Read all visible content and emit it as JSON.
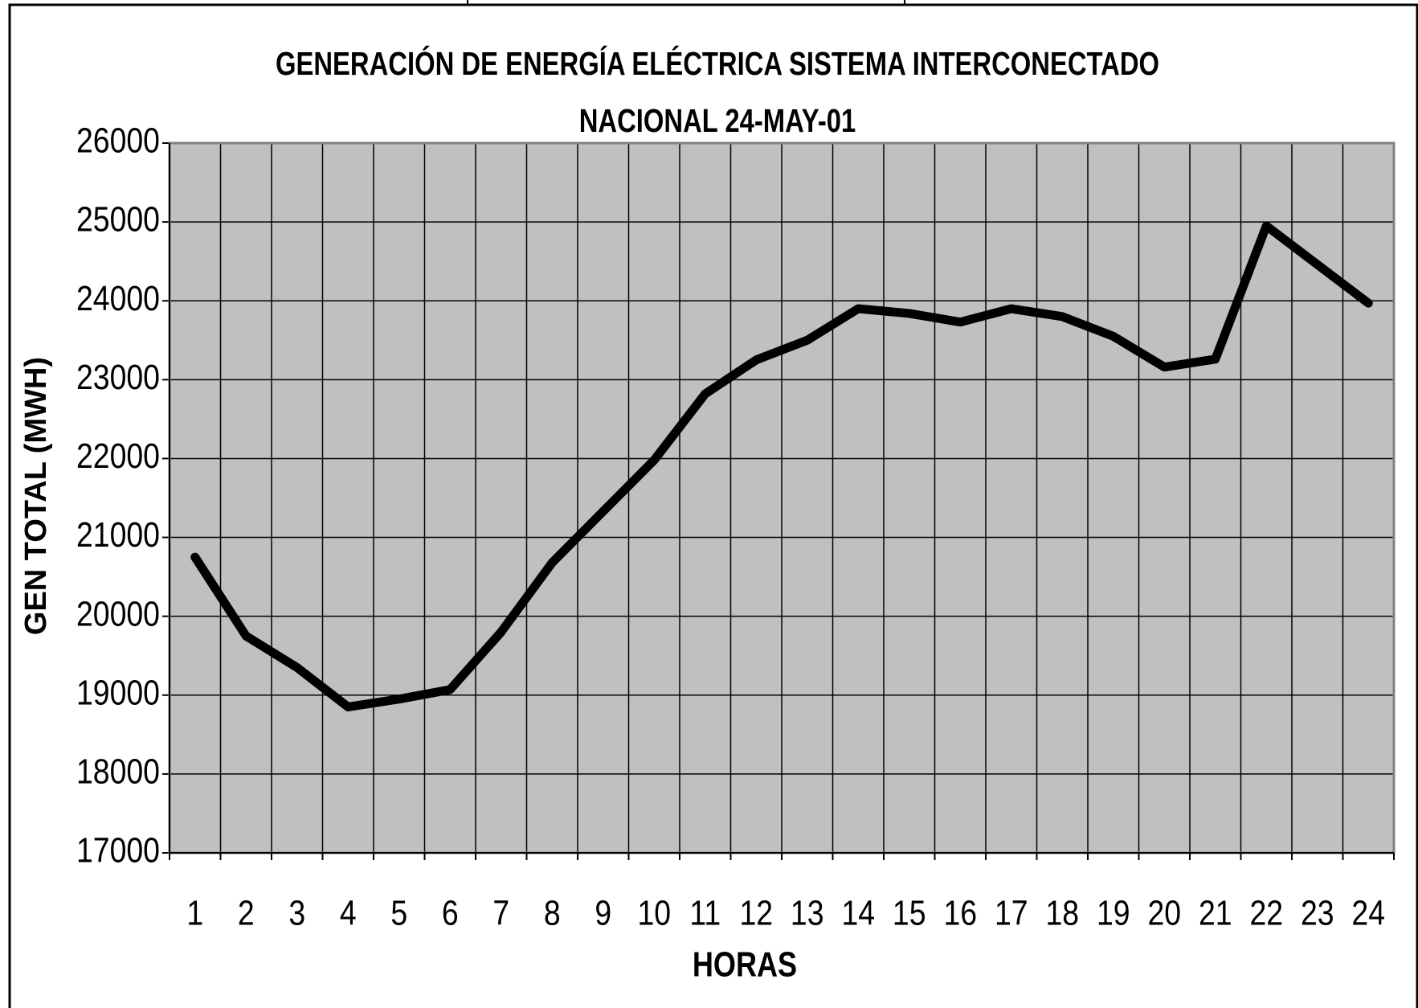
{
  "chart_data": {
    "type": "line",
    "title": "GENERACIÓN DE ENERGÍA ELÉCTRICA SISTEMA INTERCONECTADO NACIONAL 24-MAY-01",
    "x_label": "HORAS",
    "y_label": "GEN TOTAL (MWH)",
    "categories": [
      "1",
      "2",
      "3",
      "4",
      "5",
      "6",
      "7",
      "8",
      "9",
      "10",
      "11",
      "12",
      "13",
      "14",
      "15",
      "16",
      "17",
      "18",
      "19",
      "20",
      "21",
      "22",
      "23",
      "24"
    ],
    "series": [
      {
        "name": "GEN TOTAL",
        "color": "#000000",
        "values": [
          20750,
          19750,
          19350,
          18850,
          18950,
          19070,
          19800,
          20680,
          21330,
          21980,
          22820,
          23250,
          23500,
          23900,
          23840,
          23730,
          23900,
          23800,
          23550,
          23160,
          23260,
          24950,
          24460,
          23970
        ]
      }
    ],
    "ylim": [
      17000,
      26000
    ],
    "yticks": [
      17000,
      18000,
      19000,
      20000,
      21000,
      22000,
      23000,
      24000,
      25000,
      26000
    ],
    "grid": true,
    "plot_background": "#c0c0c0"
  }
}
